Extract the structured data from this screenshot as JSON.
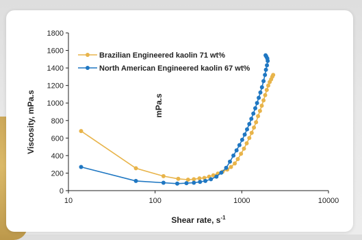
{
  "chart_data": {
    "type": "line",
    "x_scale": "log",
    "xlabel": "Shear rate, s",
    "xlabel_sup": "-1",
    "ylabel": "Viscosity, mPa.s",
    "xlim": [
      10,
      10000
    ],
    "ylim": [
      0,
      1800
    ],
    "x_ticks": [
      10,
      100,
      1000,
      10000
    ],
    "y_ticks": [
      0,
      200,
      400,
      600,
      800,
      1000,
      1200,
      1400,
      1600,
      1800
    ],
    "annotation": "mPa.s",
    "legend_position": "top-left",
    "grid": false,
    "series": [
      {
        "name": "Brazilian Engineered kaolin 71 wt%",
        "color": "#e8b44a",
        "x": [
          14,
          60,
          125,
          185,
          240,
          280,
          325,
          370,
          420,
          470,
          530,
          600,
          680,
          750,
          830,
          900,
          980,
          1060,
          1140,
          1220,
          1300,
          1380,
          1460,
          1540,
          1620,
          1700,
          1780,
          1860,
          1940,
          2020,
          2100,
          2180,
          2250,
          2300
        ],
        "y": [
          680,
          255,
          165,
          135,
          125,
          130,
          140,
          145,
          160,
          175,
          195,
          215,
          240,
          270,
          310,
          360,
          420,
          480,
          540,
          600,
          660,
          720,
          780,
          850,
          910,
          970,
          1030,
          1090,
          1150,
          1200,
          1240,
          1270,
          1300,
          1320
        ]
      },
      {
        "name": "North American Engineered kaolin 67 wt%",
        "color": "#1f77c2",
        "x": [
          14,
          60,
          125,
          180,
          230,
          280,
          330,
          380,
          440,
          510,
          580,
          660,
          730,
          800,
          870,
          940,
          1010,
          1080,
          1150,
          1220,
          1290,
          1360,
          1430,
          1500,
          1570,
          1640,
          1710,
          1780,
          1850,
          1900,
          1950,
          1990,
          1970,
          1920,
          1880
        ],
        "y": [
          270,
          110,
          90,
          80,
          85,
          90,
          100,
          110,
          130,
          160,
          205,
          260,
          330,
          400,
          460,
          520,
          580,
          640,
          700,
          760,
          820,
          880,
          940,
          1000,
          1060,
          1120,
          1180,
          1250,
          1320,
          1380,
          1430,
          1480,
          1510,
          1530,
          1545
        ]
      }
    ]
  }
}
